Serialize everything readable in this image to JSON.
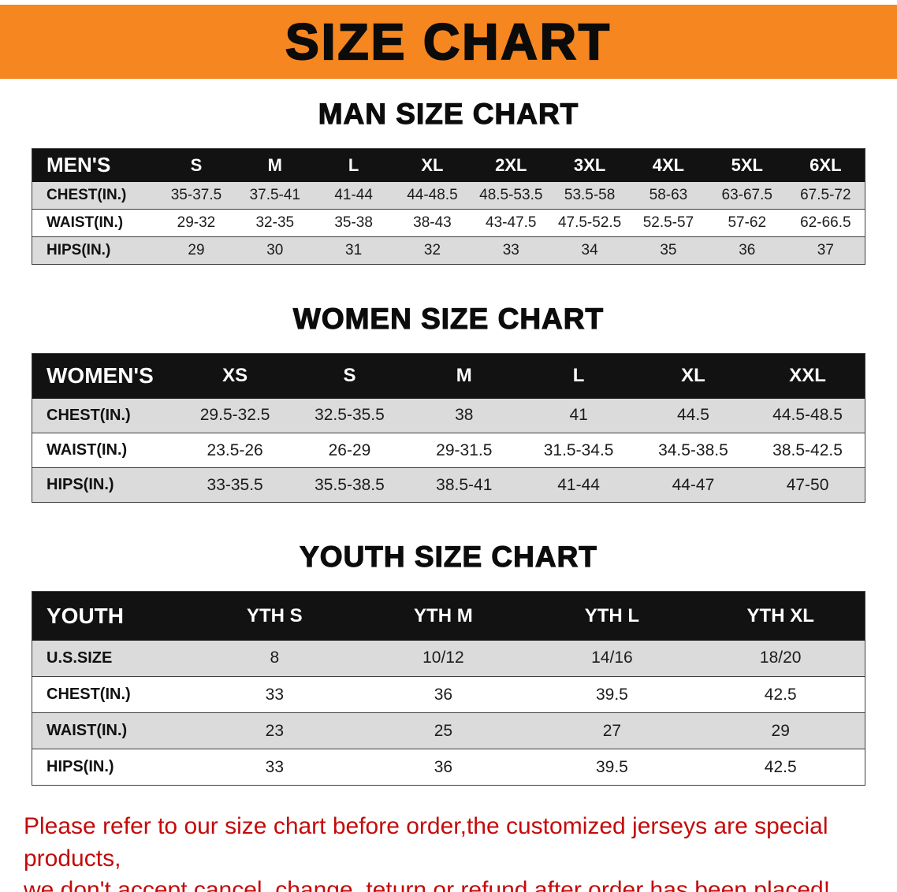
{
  "banner": {
    "title": "SIZE CHART"
  },
  "sections": [
    {
      "id": "men",
      "heading": "MAN SIZE CHART",
      "label": "MEN'S",
      "columns": [
        "S",
        "M",
        "L",
        "XL",
        "2XL",
        "3XL",
        "4XL",
        "5XL",
        "6XL"
      ],
      "rows": [
        {
          "label": "CHEST(IN.)",
          "values": [
            "35-37.5",
            "37.5-41",
            "41-44",
            "44-48.5",
            "48.5-53.5",
            "53.5-58",
            "58-63",
            "63-67.5",
            "67.5-72"
          ]
        },
        {
          "label": "WAIST(IN.)",
          "values": [
            "29-32",
            "32-35",
            "35-38",
            "38-43",
            "43-47.5",
            "47.5-52.5",
            "52.5-57",
            "57-62",
            "62-66.5"
          ]
        },
        {
          "label": "HIPS(IN.)",
          "values": [
            "29",
            "30",
            "31",
            "32",
            "33",
            "34",
            "35",
            "36",
            "37"
          ]
        }
      ]
    },
    {
      "id": "women",
      "heading": "WOMEN SIZE CHART",
      "label": "WOMEN'S",
      "columns": [
        "XS",
        "S",
        "M",
        "L",
        "XL",
        "XXL"
      ],
      "rows": [
        {
          "label": "CHEST(IN.)",
          "values": [
            "29.5-32.5",
            "32.5-35.5",
            "38",
            "41",
            "44.5",
            "44.5-48.5"
          ]
        },
        {
          "label": "WAIST(IN.)",
          "values": [
            "23.5-26",
            "26-29",
            "29-31.5",
            "31.5-34.5",
            "34.5-38.5",
            "38.5-42.5"
          ]
        },
        {
          "label": "HIPS(IN.)",
          "values": [
            "33-35.5",
            "35.5-38.5",
            "38.5-41",
            "41-44",
            "44-47",
            "47-50"
          ]
        }
      ]
    },
    {
      "id": "youth",
      "heading": "YOUTH SIZE CHART",
      "label": "YOUTH",
      "columns": [
        "YTH S",
        "YTH M",
        "YTH L",
        "YTH XL"
      ],
      "rows": [
        {
          "label": "U.S.SIZE",
          "values": [
            "8",
            "10/12",
            "14/16",
            "18/20"
          ]
        },
        {
          "label": "CHEST(IN.)",
          "values": [
            "33",
            "36",
            "39.5",
            "42.5"
          ]
        },
        {
          "label": "WAIST(IN.)",
          "values": [
            "23",
            "25",
            "27",
            "29"
          ]
        },
        {
          "label": "HIPS(IN.)",
          "values": [
            "33",
            "36",
            "39.5",
            "42.5"
          ]
        }
      ]
    }
  ],
  "footer": {
    "line1": "Please refer to our size chart before order,the customized jerseys are special products,",
    "line2": "we don't accept cancel, change, teturn or refund after order has been placed!"
  },
  "colors": {
    "banner_bg": "#F6861F",
    "header_bg": "#121212",
    "row_gray": "#dbdbdb",
    "footer_red": "#C40A0A"
  }
}
